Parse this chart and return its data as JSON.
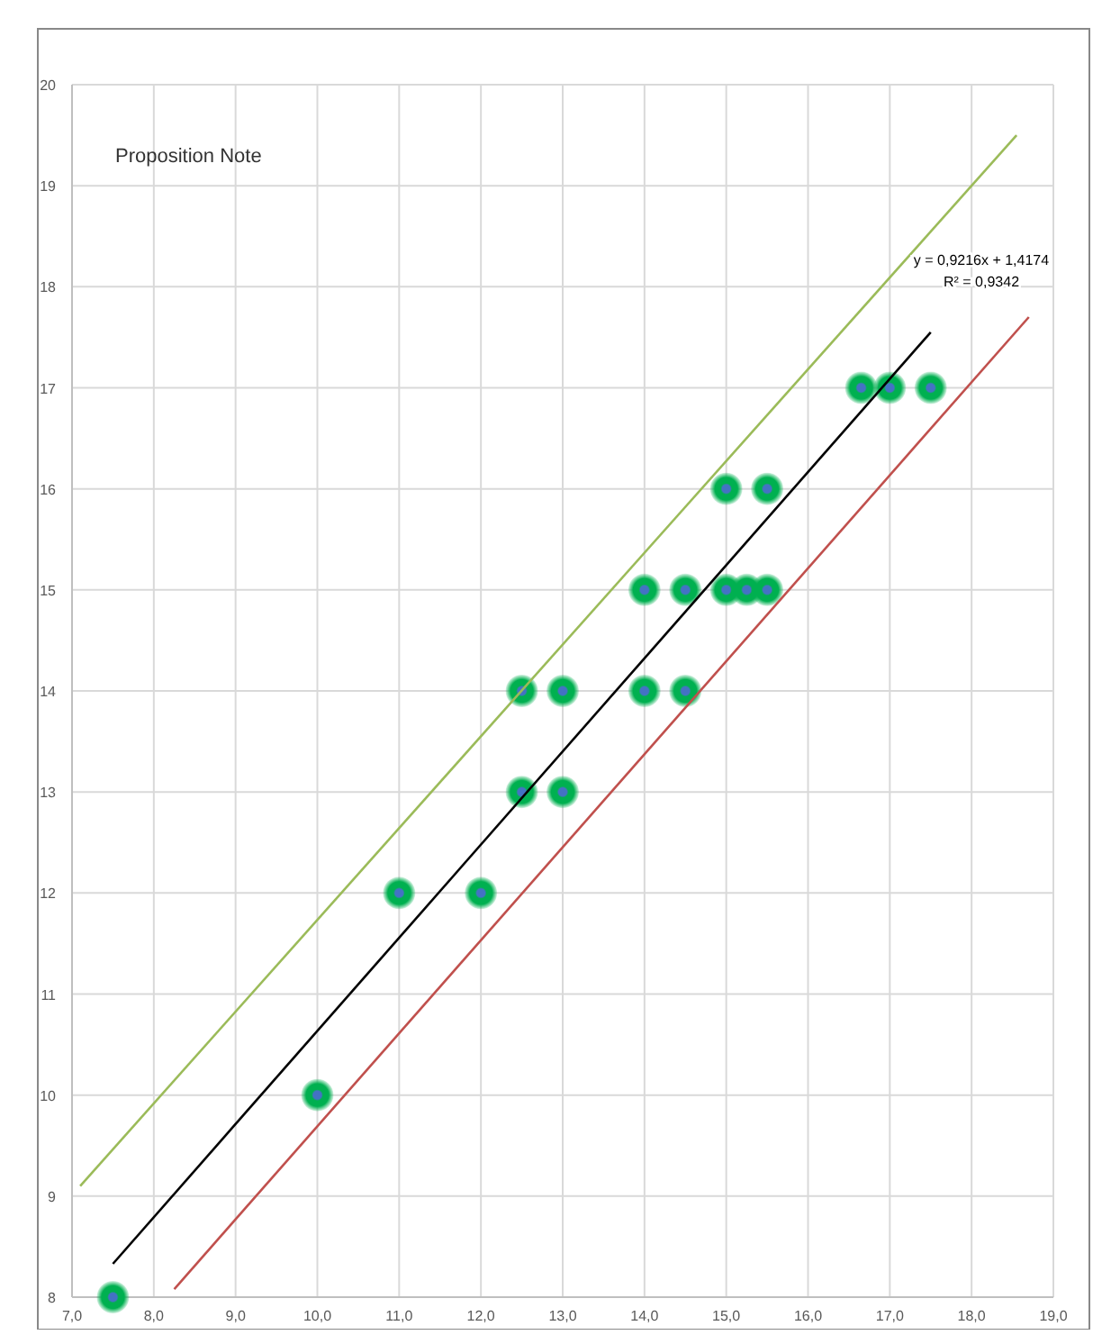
{
  "chart_data": {
    "type": "scatter",
    "title": "Proposition Note",
    "xlim": [
      7,
      19
    ],
    "ylim": [
      8,
      20
    ],
    "xticks": [
      {
        "value": 7,
        "label": "7,0"
      },
      {
        "value": 8,
        "label": "8,0"
      },
      {
        "value": 9,
        "label": "9,0"
      },
      {
        "value": 10,
        "label": "10,0"
      },
      {
        "value": 11,
        "label": "11,0"
      },
      {
        "value": 12,
        "label": "12,0"
      },
      {
        "value": 13,
        "label": "13,0"
      },
      {
        "value": 14,
        "label": "14,0"
      },
      {
        "value": 15,
        "label": "15,0"
      },
      {
        "value": 16,
        "label": "16,0"
      },
      {
        "value": 17,
        "label": "17,0"
      },
      {
        "value": 18,
        "label": "18,0"
      },
      {
        "value": 19,
        "label": "19,0"
      }
    ],
    "yticks": [
      8,
      9,
      10,
      11,
      12,
      13,
      14,
      15,
      16,
      17,
      18,
      19,
      20
    ],
    "grid": true,
    "series": [
      {
        "color": "#00b050",
        "marker": "circle",
        "x": [
          7.5,
          10,
          11,
          12,
          12.5,
          13,
          12.5,
          13,
          14,
          14.5,
          14,
          14.5,
          15,
          15.25,
          15.5,
          15,
          15.5,
          16.65,
          17,
          17.5
        ],
        "values": [
          8,
          10,
          12,
          12,
          13,
          13,
          14,
          14,
          14,
          14,
          15,
          15,
          15,
          15,
          15,
          16,
          16,
          17,
          17,
          17
        ]
      },
      {
        "type": "line",
        "color": "#000000",
        "marker": "none",
        "x": [
          7.5,
          17.5
        ],
        "values": [
          8.33,
          17.55
        ]
      },
      {
        "type": "line",
        "color": "#9bbb59",
        "marker": "none",
        "x": [
          7.1,
          18.55
        ],
        "values": [
          9.1,
          19.5
        ]
      },
      {
        "type": "line",
        "color": "#c0504d",
        "marker": "none",
        "x": [
          8.25,
          18.7
        ],
        "values": [
          8.08,
          17.7
        ]
      }
    ],
    "annotations": [
      "y = 0,9216x + 1,4174",
      "R² = 0,9342"
    ]
  }
}
